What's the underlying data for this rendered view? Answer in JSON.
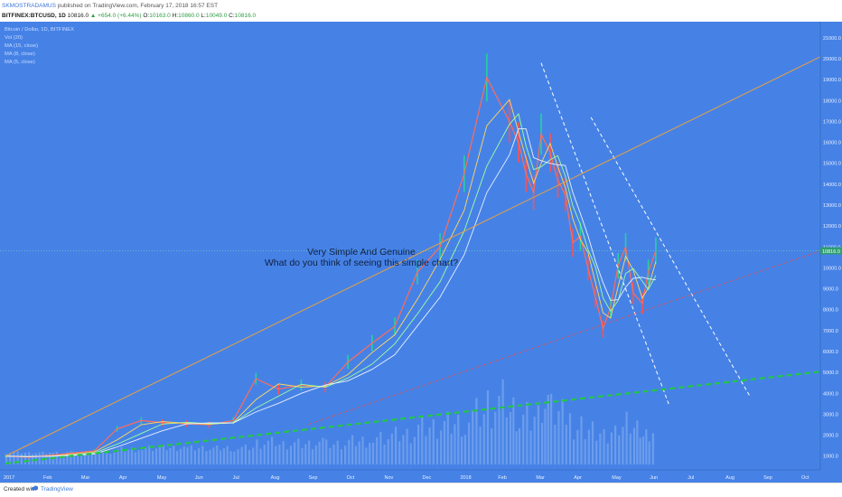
{
  "header": {
    "author": "SKMOSTRADAMUS",
    "published": "published on TradingView.com, February 17, 2018 16:57 EST",
    "symbol": "BITFINEX:BTCUSD, 1D",
    "last": "10816.0",
    "change": "+654.0 (+6.44%)",
    "o_label": "O:",
    "o_value": "10163.0",
    "h_label": "H:",
    "h_value": "10860.0",
    "l_label": "L:",
    "l_value": "10049.0",
    "c_label": "C:",
    "c_value": "10816.0"
  },
  "indicators": [
    "Bitcoin / Dollar, 1D, BITFINEX",
    "Vol (20)",
    "MA (15, close)",
    "MA (8, close)",
    "MA (5, close)"
  ],
  "annotation": {
    "line1": "Very Simple And Genuine",
    "line2": "What do you think of seeing this simple chart?"
  },
  "price_tag": "10816.0",
  "footer": {
    "created": "Created with",
    "brand": "TradingView"
  },
  "colors": {
    "background": "#4682e6",
    "up": "#26a69a",
    "down": "#ef5350",
    "orange_line": "#e8a040",
    "red_dotted": "#e05050",
    "green_dashed": "#22c744",
    "white_dashed": "#ffffff"
  },
  "chart_data": {
    "type": "line",
    "symbol": "BITFINEX:BTCUSD",
    "interval": "1D",
    "x_labels": [
      "2017",
      "Feb",
      "Mar",
      "Apr",
      "May",
      "Jun",
      "Jul",
      "Aug",
      "Sep",
      "Oct",
      "Nov",
      "Dec",
      "2018",
      "Feb",
      "Mar",
      "Apr",
      "May",
      "Jun",
      "Jul",
      "Aug",
      "Sep",
      "Oct"
    ],
    "y_ticks": [
      1000,
      2000,
      3000,
      4000,
      5000,
      6000,
      7000,
      8000,
      9000,
      10000,
      11000,
      12000,
      13000,
      14000,
      15000,
      16000,
      17000,
      18000,
      19000,
      20000,
      21000
    ],
    "ylim": [
      600,
      21600
    ],
    "xlim": [
      0,
      540
    ],
    "price_series": {
      "name": "BTCUSD close",
      "x": [
        0,
        15,
        31,
        45,
        59,
        74,
        90,
        104,
        120,
        135,
        151,
        166,
        181,
        196,
        212,
        227,
        243,
        258,
        273,
        288,
        304,
        319,
        334,
        340,
        345,
        350,
        355,
        361,
        366,
        371,
        376,
        381,
        386,
        391,
        396,
        401,
        406,
        411,
        416,
        422,
        426,
        431
      ],
      "y": [
        1000,
        950,
        1050,
        1150,
        1250,
        2300,
        2700,
        2600,
        2550,
        2500,
        2700,
        4700,
        4200,
        4400,
        4300,
        5500,
        6400,
        7200,
        9800,
        11000,
        14500,
        19100,
        17000,
        16000,
        14500,
        13600,
        16400,
        15500,
        14200,
        13500,
        11200,
        11500,
        10000,
        8600,
        7100,
        8100,
        10100,
        11000,
        8800,
        8300,
        9800,
        10816
      ]
    },
    "trendlines": [
      {
        "style": "dashed",
        "color": "white",
        "x": [
          355,
          440
        ],
        "y": [
          19800,
          3400
        ]
      },
      {
        "style": "dashed",
        "color": "white",
        "x": [
          388,
          493
        ],
        "y": [
          17200,
          3900
        ]
      },
      {
        "style": "solid",
        "color": "orange",
        "x": [
          0,
          560
        ],
        "y": [
          1000,
          20800
        ]
      },
      {
        "style": "dotted",
        "color": "red",
        "x": [
          200,
          560
        ],
        "y": [
          2500,
          11300
        ]
      },
      {
        "style": "dashed",
        "color": "green",
        "x": [
          0,
          560
        ],
        "y": [
          650,
          5200
        ]
      }
    ]
  }
}
